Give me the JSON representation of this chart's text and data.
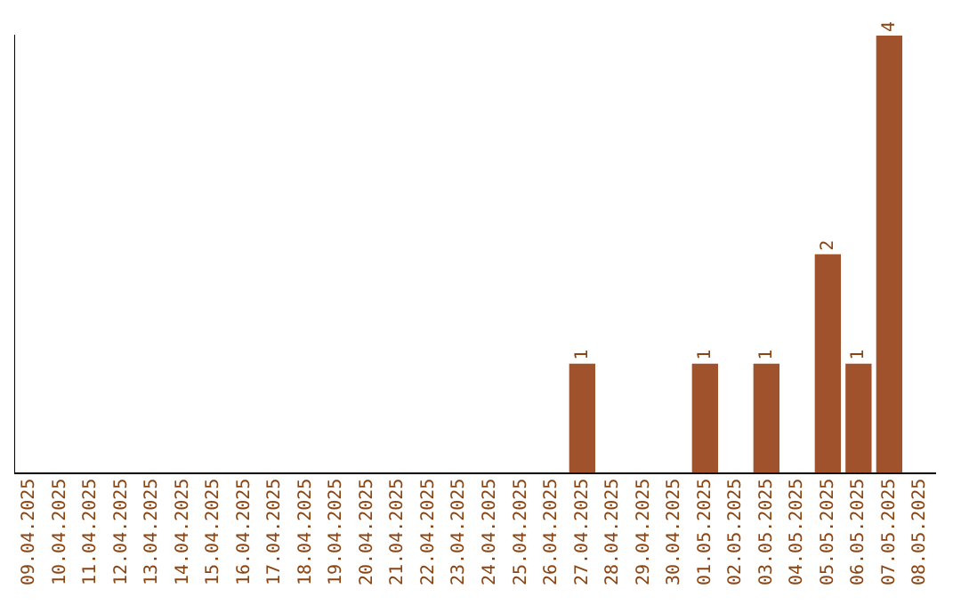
{
  "chart_data": {
    "type": "bar",
    "categories": [
      "09.04.2025",
      "10.04.2025",
      "11.04.2025",
      "12.04.2025",
      "13.04.2025",
      "14.04.2025",
      "15.04.2025",
      "16.04.2025",
      "17.04.2025",
      "18.04.2025",
      "19.04.2025",
      "20.04.2025",
      "21.04.2025",
      "22.04.2025",
      "23.04.2025",
      "24.04.2025",
      "25.04.2025",
      "26.04.2025",
      "27.04.2025",
      "28.04.2025",
      "29.04.2025",
      "30.04.2025",
      "01.05.2025",
      "02.05.2025",
      "03.05.2025",
      "04.05.2025",
      "05.05.2025",
      "06.05.2025",
      "07.05.2025",
      "08.05.2025"
    ],
    "values": [
      null,
      null,
      null,
      null,
      null,
      null,
      null,
      null,
      null,
      null,
      null,
      null,
      null,
      null,
      null,
      null,
      null,
      null,
      1,
      null,
      null,
      null,
      1,
      null,
      1,
      null,
      2,
      1,
      4,
      null
    ],
    "data_labels": true,
    "color": "#a0522d",
    "tick_labels": "x",
    "grid": false,
    "legend": false
  }
}
